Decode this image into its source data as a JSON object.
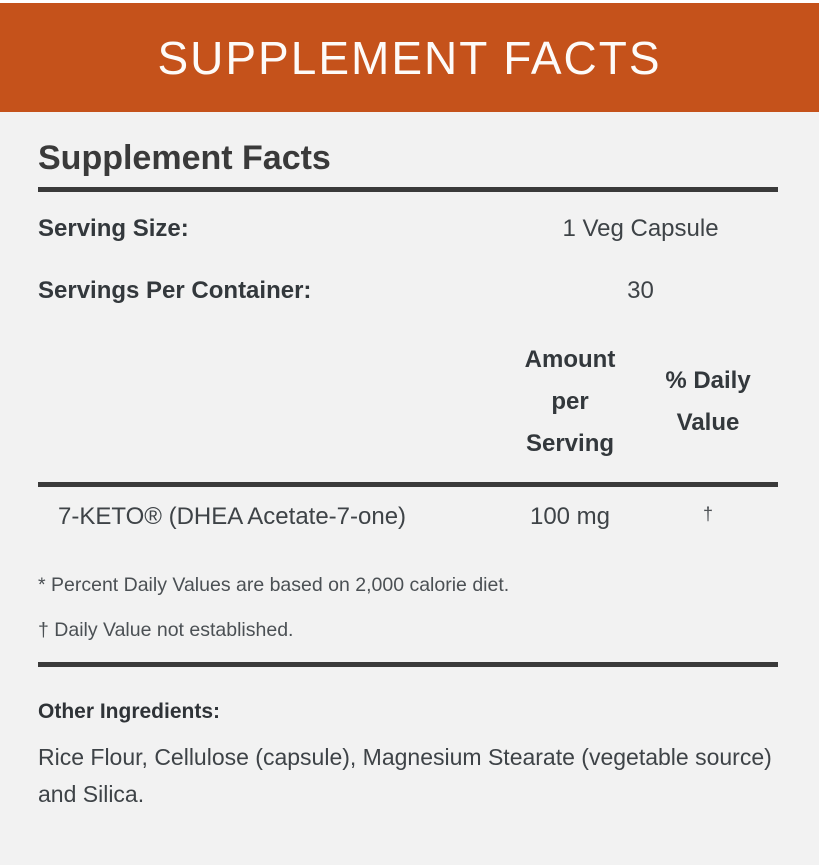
{
  "banner": {
    "title": "SUPPLEMENT FACTS"
  },
  "panel": {
    "heading": "Supplement Facts",
    "serving_size": {
      "label": "Serving Size:",
      "value": "1 Veg Capsule"
    },
    "servings_per_container": {
      "label": "Servings Per Container:",
      "value": "30"
    },
    "columns": {
      "amount": "Amount per Serving",
      "daily_value": "% Daily Value"
    },
    "rows": [
      {
        "name": "7-KETO® (DHEA Acetate-7-one)",
        "amount": "100 mg",
        "daily_value": "†"
      }
    ],
    "footnotes": [
      "* Percent Daily Values are based on 2,000 calorie diet.",
      "† Daily Value not established."
    ],
    "other_ingredients": {
      "label": "Other Ingredients:",
      "text": "Rice Flour, Cellulose (capsule), Magnesium Stearate (vegetable source) and Silica."
    }
  },
  "colors": {
    "accent_orange": "#C5521B",
    "panel_background": "#F2F2F2",
    "rule": "#3A3A3A",
    "text": "#3E4347"
  }
}
